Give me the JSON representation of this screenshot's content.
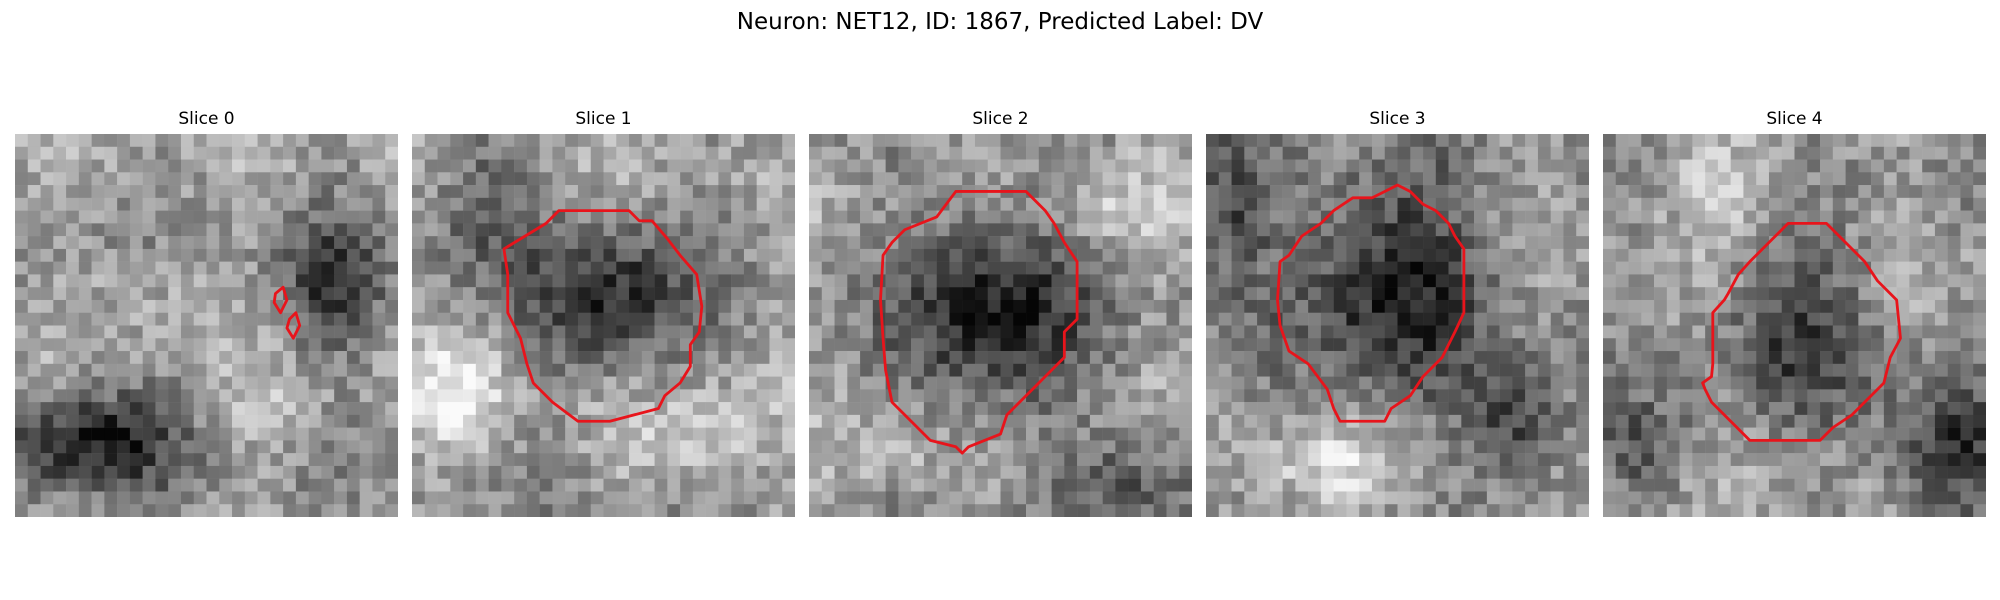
{
  "figure": {
    "title": "Neuron: NET12, ID: 1867, Predicted Label: DV"
  },
  "slices": [
    {
      "title": "Slice 0"
    },
    {
      "title": "Slice 1"
    },
    {
      "title": "Slice 2"
    },
    {
      "title": "Slice 3"
    },
    {
      "title": "Slice 4"
    }
  ],
  "colors": {
    "contour": "#e8141b",
    "background": "#ffffff"
  }
}
